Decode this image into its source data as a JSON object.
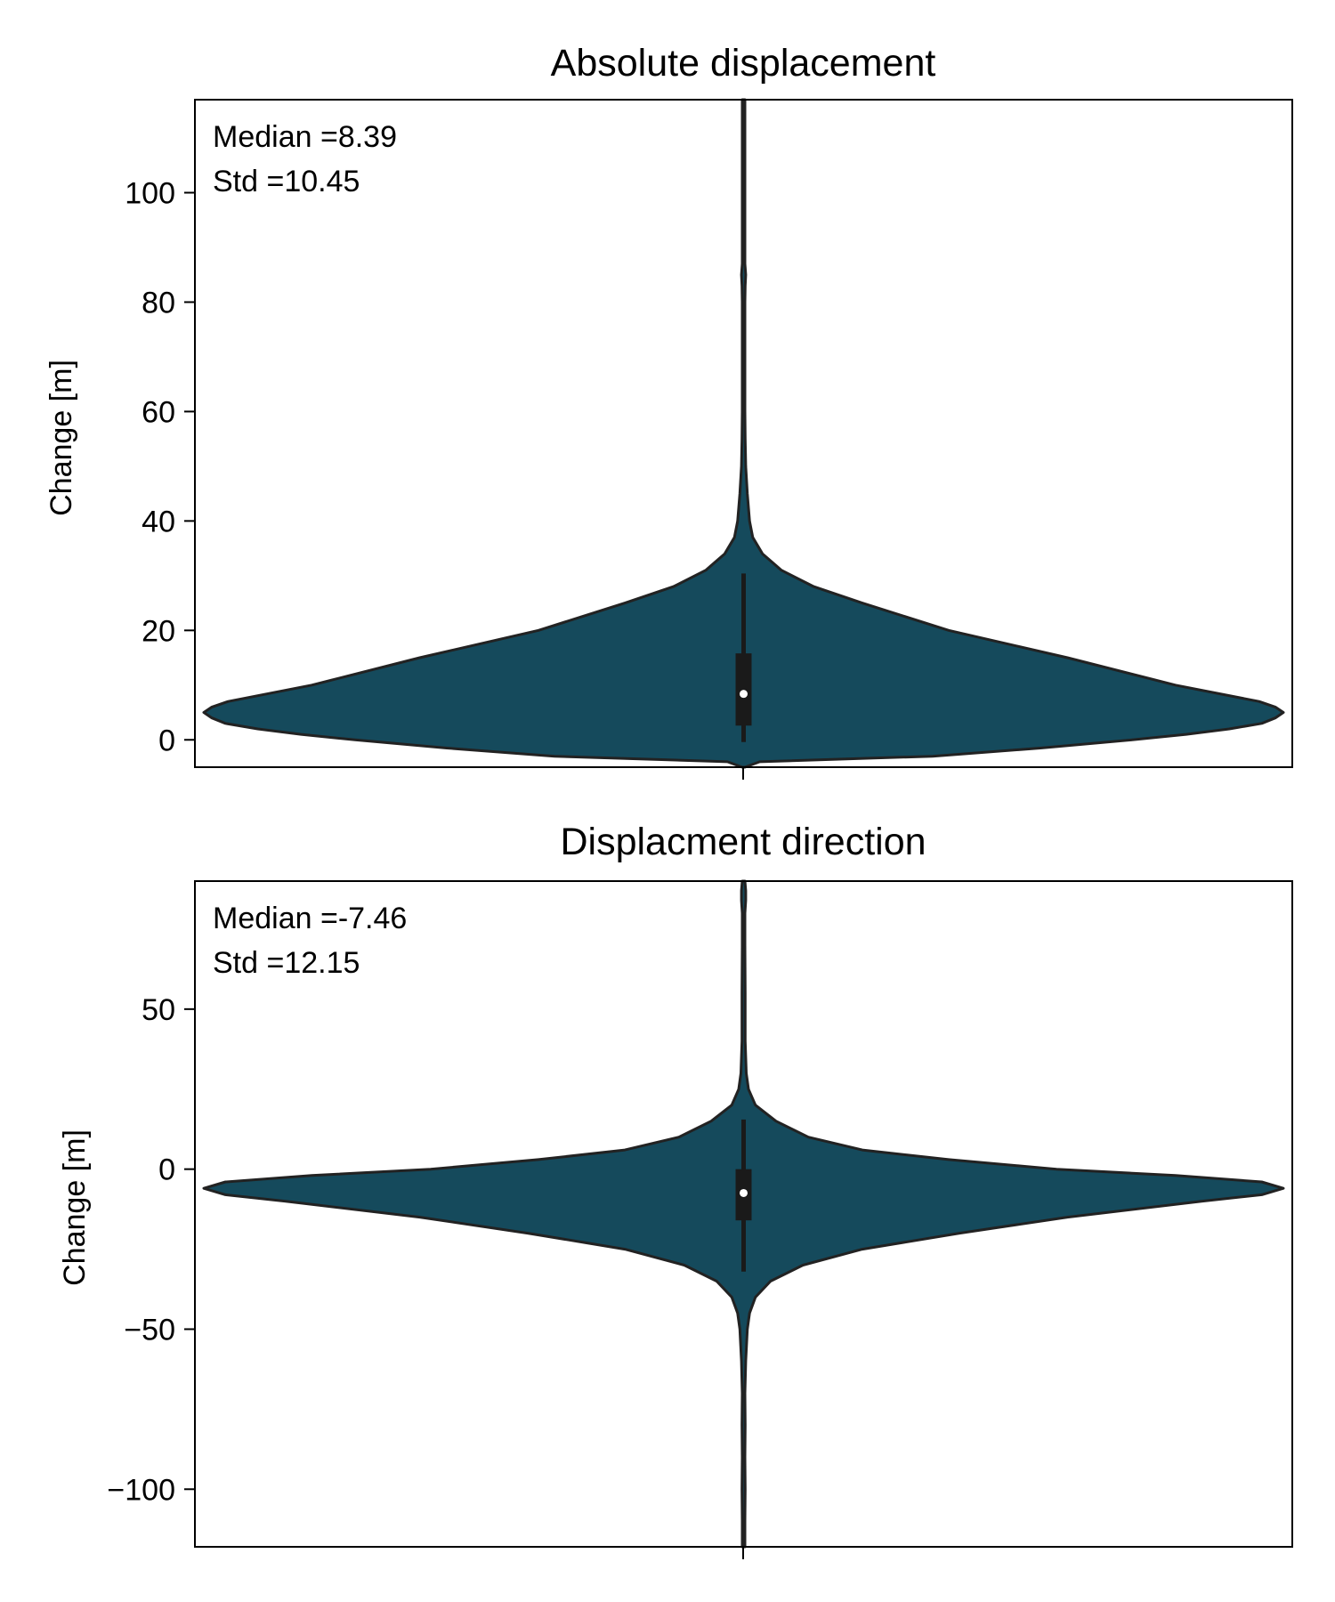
{
  "chart_data": [
    {
      "type": "violin",
      "title": "Absolute displacement",
      "ylabel": "Change [m]",
      "xlabel": "",
      "ylim": [
        -5,
        117
      ],
      "yticks": [
        0,
        20,
        40,
        60,
        80,
        100
      ],
      "ytick_labels": [
        "0",
        "20",
        "40",
        "60",
        "80",
        "100"
      ],
      "annotations": [
        "Median =8.39",
        "Std =10.45"
      ],
      "grid": false,
      "fill_color": "#154a5c",
      "edge_color": "#222222",
      "box": {
        "q1": 2.6,
        "q3": 15.8,
        "whisker_low": -0.4,
        "whisker_high": 30.4,
        "median": 8.39
      },
      "density_profile": [
        [
          -5.0,
          0.0
        ],
        [
          -4.0,
          0.03
        ],
        [
          -3.0,
          0.35
        ],
        [
          -1.5,
          0.55
        ],
        [
          0.0,
          0.72
        ],
        [
          1.0,
          0.82
        ],
        [
          2.0,
          0.9
        ],
        [
          3.0,
          0.96
        ],
        [
          4.0,
          0.985
        ],
        [
          5.0,
          1.0
        ],
        [
          6.0,
          0.985
        ],
        [
          7.0,
          0.955
        ],
        [
          10.0,
          0.8
        ],
        [
          15.0,
          0.6
        ],
        [
          20.0,
          0.38
        ],
        [
          25.0,
          0.22
        ],
        [
          28.0,
          0.13
        ],
        [
          31.0,
          0.07
        ],
        [
          34.0,
          0.035
        ],
        [
          37.0,
          0.017
        ],
        [
          40.0,
          0.011
        ],
        [
          45.0,
          0.007
        ],
        [
          50.0,
          0.004
        ],
        [
          55.0,
          0.003
        ],
        [
          60.0,
          0.0025
        ],
        [
          70.0,
          0.002
        ],
        [
          80.0,
          0.002
        ],
        [
          83.0,
          0.003
        ],
        [
          85.0,
          0.004
        ],
        [
          87.0,
          0.002
        ],
        [
          95.0,
          0.002
        ],
        [
          105.0,
          0.002
        ],
        [
          112.0,
          0.002
        ],
        [
          117.0,
          0.002
        ]
      ]
    },
    {
      "type": "violin",
      "title": "Displacment direction",
      "ylabel": "Change [m]",
      "xlabel": "",
      "ylim": [
        -118,
        90
      ],
      "yticks": [
        -100,
        -50,
        0,
        50
      ],
      "ytick_labels": [
        "−100",
        "−50",
        "0",
        "50"
      ],
      "annotations": [
        "Median =-7.46",
        "Std =12.15"
      ],
      "grid": false,
      "fill_color": "#154a5c",
      "edge_color": "#222222",
      "box": {
        "q1": -16.0,
        "q3": 0.0,
        "whisker_low": -32.0,
        "whisker_high": 15.5,
        "median": -7.46
      },
      "density_profile": [
        [
          -118.0,
          0.0
        ],
        [
          -110.0,
          0.002
        ],
        [
          -100.0,
          0.003
        ],
        [
          -90.0,
          0.002
        ],
        [
          -80.0,
          0.003
        ],
        [
          -70.0,
          0.002
        ],
        [
          -60.0,
          0.004
        ],
        [
          -50.0,
          0.007
        ],
        [
          -45.0,
          0.011
        ],
        [
          -40.0,
          0.022
        ],
        [
          -35.0,
          0.05
        ],
        [
          -30.0,
          0.11
        ],
        [
          -25.0,
          0.22
        ],
        [
          -20.0,
          0.4
        ],
        [
          -15.0,
          0.6
        ],
        [
          -10.0,
          0.85
        ],
        [
          -8.0,
          0.96
        ],
        [
          -6.0,
          1.0
        ],
        [
          -4.0,
          0.96
        ],
        [
          -2.0,
          0.8
        ],
        [
          0.0,
          0.58
        ],
        [
          3.0,
          0.38
        ],
        [
          6.0,
          0.22
        ],
        [
          10.0,
          0.12
        ],
        [
          15.0,
          0.06
        ],
        [
          20.0,
          0.022
        ],
        [
          25.0,
          0.009
        ],
        [
          30.0,
          0.005
        ],
        [
          40.0,
          0.003
        ],
        [
          55.0,
          0.003
        ],
        [
          70.0,
          0.002
        ],
        [
          80.0,
          0.002
        ],
        [
          84.0,
          0.004
        ],
        [
          87.0,
          0.004
        ],
        [
          90.0,
          0.002
        ]
      ]
    }
  ]
}
